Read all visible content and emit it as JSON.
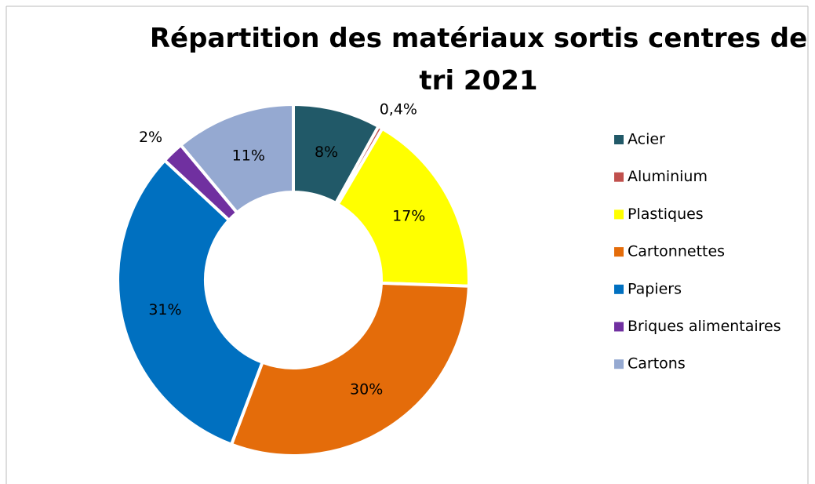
{
  "chart_data": {
    "type": "donut",
    "title": "Répartition des matériaux sortis centres de tri 2021",
    "categories": [
      "Acier",
      "Aluminium",
      "Plastiques",
      "Cartonnettes",
      "Papiers",
      "Briques alimentaires",
      "Cartons"
    ],
    "values": [
      8,
      0.4,
      17,
      30,
      31,
      2,
      11
    ],
    "value_labels": [
      "8%",
      "0,4%",
      "17%",
      "30%",
      "31%",
      "2%",
      "11%"
    ],
    "colors": [
      "#215968",
      "#C0504D",
      "#FFFF00",
      "#E46C0A",
      "#0070C0",
      "#7030A0",
      "#95A9D1"
    ],
    "legend": "right"
  }
}
